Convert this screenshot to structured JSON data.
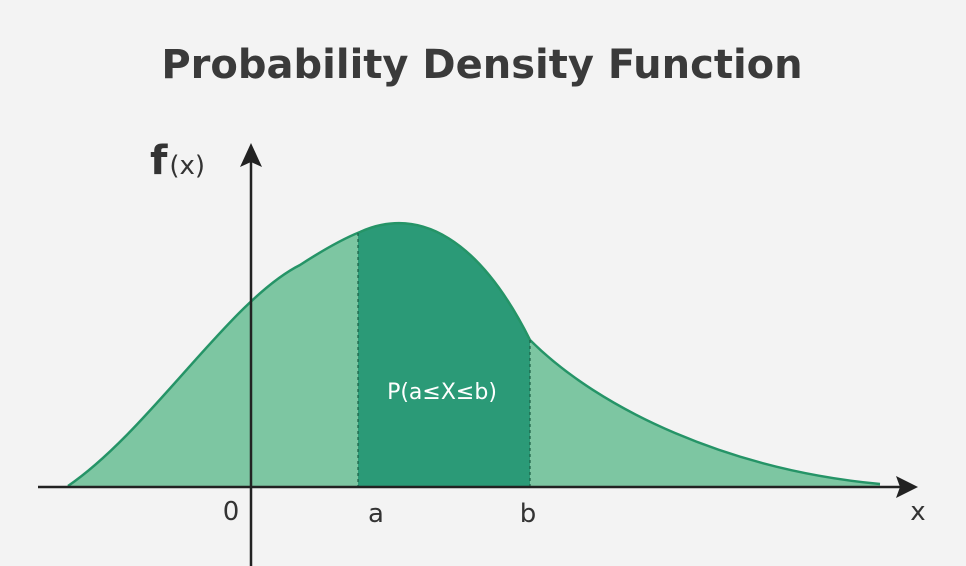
{
  "title": "Probability Density Function",
  "y_axis_label": {
    "main": "f",
    "sub": "(x)"
  },
  "x_axis_label": "x",
  "ticks": {
    "origin": "0",
    "a": "a",
    "b": "b"
  },
  "region_label": "P(a≤X≤b)",
  "colors": {
    "background": "#f3f3f3",
    "curve_fill": "#7dc6a2",
    "region_fill": "#2b9a77",
    "curve_stroke": "#259467",
    "axis": "#222222",
    "text": "#3a3a3a"
  }
}
